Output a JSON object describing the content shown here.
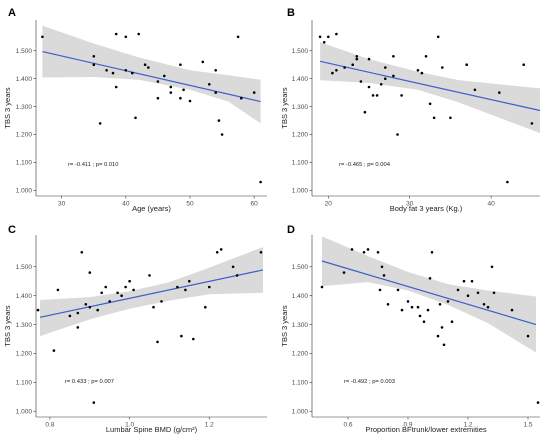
{
  "chart_data": [
    {
      "panel": "A",
      "type": "scatter",
      "xlabel": "Age (years)",
      "ylabel": "TBS 3 years",
      "xlim": [
        26,
        62
      ],
      "ylim": [
        0.98,
        1.61
      ],
      "xticks": [
        30,
        40,
        50,
        60
      ],
      "xtick_labels": [
        "30",
        "40",
        "50",
        "60"
      ],
      "yticks": [
        1.0,
        1.1,
        1.2,
        1.3,
        1.4,
        1.5
      ],
      "ytick_labels": [
        "1.000",
        "1.100",
        "1.200",
        "1.300",
        "1.400",
        "1.500"
      ],
      "annotation": "r= -0.411 ; p= 0.010",
      "fit": {
        "x0": 27,
        "y0": 1.497,
        "x1": 61,
        "y1": 1.318
      },
      "ci_upper": [
        [
          27,
          1.59
        ],
        [
          35,
          1.526
        ],
        [
          42,
          1.476
        ],
        [
          50,
          1.43
        ],
        [
          56,
          1.412
        ],
        [
          61,
          1.396
        ]
      ],
      "ci_lower": [
        [
          27,
          1.404
        ],
        [
          35,
          1.406
        ],
        [
          42,
          1.396
        ],
        [
          50,
          1.36
        ],
        [
          56,
          1.318
        ],
        [
          61,
          1.24
        ]
      ],
      "points": [
        [
          27,
          1.55
        ],
        [
          35,
          1.48
        ],
        [
          35,
          1.45
        ],
        [
          36,
          1.24
        ],
        [
          37,
          1.43
        ],
        [
          38,
          1.42
        ],
        [
          38.5,
          1.56
        ],
        [
          38.5,
          1.37
        ],
        [
          40,
          1.55
        ],
        [
          40,
          1.43
        ],
        [
          41,
          1.42
        ],
        [
          41.5,
          1.26
        ],
        [
          42,
          1.56
        ],
        [
          43,
          1.45
        ],
        [
          43.5,
          1.44
        ],
        [
          45,
          1.39
        ],
        [
          45,
          1.33
        ],
        [
          46,
          1.41
        ],
        [
          47,
          1.37
        ],
        [
          47,
          1.35
        ],
        [
          48.5,
          1.45
        ],
        [
          48.5,
          1.33
        ],
        [
          49,
          1.36
        ],
        [
          50,
          1.32
        ],
        [
          52,
          1.46
        ],
        [
          53,
          1.38
        ],
        [
          54,
          1.43
        ],
        [
          54,
          1.35
        ],
        [
          54.5,
          1.25
        ],
        [
          55,
          1.2
        ],
        [
          57.5,
          1.55
        ],
        [
          58,
          1.33
        ],
        [
          60,
          1.35
        ],
        [
          61,
          1.03
        ]
      ]
    },
    {
      "panel": "B",
      "type": "scatter",
      "xlabel": "Body fat 3 years (Kg.)",
      "ylabel": "TBS 3 years",
      "xlim": [
        18,
        46
      ],
      "ylim": [
        0.98,
        1.61
      ],
      "xticks": [
        20,
        30,
        40
      ],
      "xtick_labels": [
        "20",
        "30",
        "40"
      ],
      "yticks": [
        1.0,
        1.1,
        1.2,
        1.3,
        1.4,
        1.5
      ],
      "ytick_labels": [
        "1.000",
        "1.100",
        "1.200",
        "1.300",
        "1.400",
        "1.500"
      ],
      "annotation": "r= -0.465 ; p= 0.004",
      "fit": {
        "x0": 19,
        "y0": 1.462,
        "x1": 46,
        "y1": 1.286
      },
      "ci_upper": [
        [
          19,
          1.53
        ],
        [
          25,
          1.47
        ],
        [
          31,
          1.425
        ],
        [
          36,
          1.395
        ],
        [
          41,
          1.38
        ],
        [
          46,
          1.365
        ]
      ],
      "ci_lower": [
        [
          19,
          1.394
        ],
        [
          25,
          1.385
        ],
        [
          31,
          1.36
        ],
        [
          36,
          1.315
        ],
        [
          41,
          1.26
        ],
        [
          46,
          1.205
        ]
      ],
      "points": [
        [
          19,
          1.55
        ],
        [
          19.5,
          1.53
        ],
        [
          20,
          1.55
        ],
        [
          20.5,
          1.42
        ],
        [
          21,
          1.43
        ],
        [
          21,
          1.56
        ],
        [
          22,
          1.44
        ],
        [
          23,
          1.45
        ],
        [
          23.5,
          1.47
        ],
        [
          23.5,
          1.48
        ],
        [
          24,
          1.39
        ],
        [
          24.5,
          1.28
        ],
        [
          25,
          1.47
        ],
        [
          25,
          1.37
        ],
        [
          25.5,
          1.34
        ],
        [
          26,
          1.34
        ],
        [
          26.5,
          1.38
        ],
        [
          27,
          1.44
        ],
        [
          27,
          1.4
        ],
        [
          28,
          1.41
        ],
        [
          28,
          1.48
        ],
        [
          28.5,
          1.2
        ],
        [
          29,
          1.34
        ],
        [
          31,
          1.43
        ],
        [
          31.5,
          1.42
        ],
        [
          32,
          1.48
        ],
        [
          32.5,
          1.31
        ],
        [
          33,
          1.26
        ],
        [
          33.5,
          1.55
        ],
        [
          34,
          1.44
        ],
        [
          35,
          1.26
        ],
        [
          37,
          1.45
        ],
        [
          38,
          1.36
        ],
        [
          41,
          1.35
        ],
        [
          42,
          1.03
        ],
        [
          44,
          1.45
        ],
        [
          45,
          1.24
        ]
      ]
    },
    {
      "panel": "C",
      "type": "scatter",
      "xlabel": "Lumbar Spine BMD (g/cm²)",
      "ylabel": "TBS 3 years",
      "xlim": [
        0.765,
        1.345
      ],
      "ylim": [
        0.98,
        1.61
      ],
      "xticks": [
        0.8,
        1.0,
        1.2
      ],
      "xtick_labels": [
        "0.8",
        "1.0",
        "1.2"
      ],
      "yticks": [
        1.0,
        1.1,
        1.2,
        1.3,
        1.4,
        1.5
      ],
      "ytick_labels": [
        "1.000",
        "1.100",
        "1.200",
        "1.300",
        "1.400",
        "1.500"
      ],
      "annotation": "r= 0.433 ; p= 0.007",
      "fit": {
        "x0": 0.775,
        "y0": 1.325,
        "x1": 1.335,
        "y1": 1.489
      },
      "ci_upper": [
        [
          0.775,
          1.385
        ],
        [
          0.9,
          1.395
        ],
        [
          1.0,
          1.415
        ],
        [
          1.1,
          1.447
        ],
        [
          1.2,
          1.497
        ],
        [
          1.335,
          1.568
        ]
      ],
      "ci_lower": [
        [
          0.775,
          1.26
        ],
        [
          0.9,
          1.318
        ],
        [
          1.0,
          1.355
        ],
        [
          1.1,
          1.383
        ],
        [
          1.2,
          1.405
        ],
        [
          1.335,
          1.41
        ]
      ],
      "points": [
        [
          0.77,
          1.35
        ],
        [
          0.81,
          1.21
        ],
        [
          0.82,
          1.42
        ],
        [
          0.85,
          1.33
        ],
        [
          0.87,
          1.34
        ],
        [
          0.87,
          1.29
        ],
        [
          0.88,
          1.55
        ],
        [
          0.89,
          1.37
        ],
        [
          0.9,
          1.36
        ],
        [
          0.9,
          1.48
        ],
        [
          0.91,
          1.03
        ],
        [
          0.92,
          1.35
        ],
        [
          0.93,
          1.41
        ],
        [
          0.94,
          1.43
        ],
        [
          0.95,
          1.38
        ],
        [
          0.97,
          1.41
        ],
        [
          0.98,
          1.4
        ],
        [
          0.99,
          1.43
        ],
        [
          1.0,
          1.45
        ],
        [
          1.01,
          1.42
        ],
        [
          1.05,
          1.47
        ],
        [
          1.06,
          1.36
        ],
        [
          1.07,
          1.24
        ],
        [
          1.08,
          1.38
        ],
        [
          1.12,
          1.43
        ],
        [
          1.13,
          1.26
        ],
        [
          1.14,
          1.42
        ],
        [
          1.15,
          1.45
        ],
        [
          1.16,
          1.25
        ],
        [
          1.19,
          1.36
        ],
        [
          1.2,
          1.43
        ],
        [
          1.22,
          1.55
        ],
        [
          1.23,
          1.56
        ],
        [
          1.26,
          1.5
        ],
        [
          1.27,
          1.47
        ],
        [
          1.33,
          1.55
        ]
      ]
    },
    {
      "panel": "D",
      "type": "scatter",
      "xlabel": "Proportion BFtrunk/lower extremities",
      "ylabel": "TBS 3 years",
      "xlim": [
        0.42,
        1.56
      ],
      "ylim": [
        0.98,
        1.61
      ],
      "xticks": [
        0.6,
        0.9,
        1.2,
        1.5
      ],
      "xtick_labels": [
        "0.6",
        "0.9",
        "1.2",
        "1.5"
      ],
      "yticks": [
        1.0,
        1.1,
        1.2,
        1.3,
        1.4,
        1.5
      ],
      "ytick_labels": [
        "1.000",
        "1.100",
        "1.200",
        "1.300",
        "1.400",
        "1.500"
      ],
      "annotation": "r= -0.492 ; p= 0.003",
      "fit": {
        "x0": 0.47,
        "y0": 1.52,
        "x1": 1.54,
        "y1": 1.3
      },
      "ci_upper": [
        [
          0.47,
          1.605
        ],
        [
          0.7,
          1.537
        ],
        [
          0.9,
          1.482
        ],
        [
          1.1,
          1.44
        ],
        [
          1.3,
          1.418
        ],
        [
          1.54,
          1.397
        ]
      ],
      "ci_lower": [
        [
          0.47,
          1.433
        ],
        [
          0.7,
          1.447
        ],
        [
          0.9,
          1.418
        ],
        [
          1.1,
          1.368
        ],
        [
          1.3,
          1.305
        ],
        [
          1.54,
          1.203
        ]
      ],
      "points": [
        [
          0.47,
          1.43
        ],
        [
          0.58,
          1.48
        ],
        [
          0.62,
          1.56
        ],
        [
          0.68,
          1.55
        ],
        [
          0.7,
          1.56
        ],
        [
          0.75,
          1.55
        ],
        [
          0.76,
          1.42
        ],
        [
          0.77,
          1.5
        ],
        [
          0.78,
          1.47
        ],
        [
          0.8,
          1.37
        ],
        [
          0.85,
          1.42
        ],
        [
          0.87,
          1.35
        ],
        [
          0.9,
          1.38
        ],
        [
          0.92,
          1.36
        ],
        [
          0.95,
          1.36
        ],
        [
          0.96,
          1.33
        ],
        [
          0.98,
          1.31
        ],
        [
          1.0,
          1.35
        ],
        [
          1.01,
          1.46
        ],
        [
          1.02,
          1.55
        ],
        [
          1.05,
          1.26
        ],
        [
          1.06,
          1.37
        ],
        [
          1.07,
          1.29
        ],
        [
          1.08,
          1.23
        ],
        [
          1.1,
          1.38
        ],
        [
          1.12,
          1.31
        ],
        [
          1.15,
          1.42
        ],
        [
          1.18,
          1.45
        ],
        [
          1.2,
          1.4
        ],
        [
          1.22,
          1.45
        ],
        [
          1.25,
          1.41
        ],
        [
          1.28,
          1.37
        ],
        [
          1.3,
          1.36
        ],
        [
          1.32,
          1.5
        ],
        [
          1.33,
          1.41
        ],
        [
          1.42,
          1.35
        ],
        [
          1.5,
          1.26
        ],
        [
          1.55,
          1.03
        ]
      ]
    }
  ]
}
